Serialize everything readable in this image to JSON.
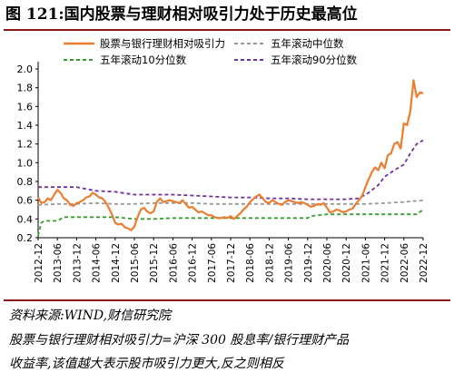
{
  "header": {
    "title": "图 121:国内股票与理财相对吸引力处于历史最高位"
  },
  "notes": {
    "source": "资料来源:WIND,财信研究院",
    "definition_line1": "股票与银行理财相对吸引力=沪深 300 股息率/银行理财产品",
    "definition_line2": "收益率,该值越大表示股市吸引力更大,反之则相反"
  },
  "colors": {
    "title_rule": "#8b1a1a",
    "main_series": "#ed7d31",
    "median_series": "#999999",
    "p10_series": "#33a02c",
    "p90_series": "#7030a0"
  },
  "chart_data": {
    "type": "line",
    "title": "",
    "xlabel": "",
    "ylabel": "",
    "ylim": [
      0.2,
      2.0
    ],
    "yticks": [
      "0.2",
      "0.4",
      "0.6",
      "0.8",
      "1.0",
      "1.2",
      "1.4",
      "1.6",
      "1.8",
      "2.0"
    ],
    "x_start": "2012-12",
    "x_end": "2022-12",
    "xticks": [
      "2012-12",
      "2013-06",
      "2013-12",
      "2014-06",
      "2014-12",
      "2015-06",
      "2015-12",
      "2016-06",
      "2016-12",
      "2017-06",
      "2017-12",
      "2018-06",
      "2018-12",
      "2019-06",
      "2019-12",
      "2020-06",
      "2020-12",
      "2021-06",
      "2021-12",
      "2022-06",
      "2022-12"
    ],
    "grid": false,
    "legend_position": "top",
    "series": [
      {
        "name": "股票与银行理财相对吸引力",
        "color": "#ed7d31",
        "style": "solid",
        "points": [
          [
            "2012-12",
            0.63
          ],
          [
            "2013-01",
            0.57
          ],
          [
            "2013-02",
            0.58
          ],
          [
            "2013-03",
            0.62
          ],
          [
            "2013-04",
            0.6
          ],
          [
            "2013-05",
            0.66
          ],
          [
            "2013-06",
            0.71
          ],
          [
            "2013-07",
            0.68
          ],
          [
            "2013-08",
            0.62
          ],
          [
            "2013-09",
            0.6
          ],
          [
            "2013-10",
            0.55
          ],
          [
            "2013-11",
            0.54
          ],
          [
            "2013-12",
            0.57
          ],
          [
            "2014-01",
            0.58
          ],
          [
            "2014-02",
            0.6
          ],
          [
            "2014-03",
            0.63
          ],
          [
            "2014-04",
            0.64
          ],
          [
            "2014-05",
            0.68
          ],
          [
            "2014-06",
            0.66
          ],
          [
            "2014-07",
            0.63
          ],
          [
            "2014-08",
            0.62
          ],
          [
            "2014-09",
            0.58
          ],
          [
            "2014-10",
            0.52
          ],
          [
            "2014-11",
            0.45
          ],
          [
            "2014-12",
            0.36
          ],
          [
            "2015-01",
            0.34
          ],
          [
            "2015-02",
            0.35
          ],
          [
            "2015-03",
            0.31
          ],
          [
            "2015-04",
            0.3
          ],
          [
            "2015-05",
            0.28
          ],
          [
            "2015-06",
            0.32
          ],
          [
            "2015-07",
            0.42
          ],
          [
            "2015-08",
            0.5
          ],
          [
            "2015-09",
            0.52
          ],
          [
            "2015-10",
            0.48
          ],
          [
            "2015-11",
            0.46
          ],
          [
            "2015-12",
            0.48
          ],
          [
            "2016-01",
            0.58
          ],
          [
            "2016-02",
            0.62
          ],
          [
            "2016-03",
            0.58
          ],
          [
            "2016-04",
            0.59
          ],
          [
            "2016-05",
            0.6
          ],
          [
            "2016-06",
            0.59
          ],
          [
            "2016-07",
            0.58
          ],
          [
            "2016-08",
            0.57
          ],
          [
            "2016-09",
            0.6
          ],
          [
            "2016-10",
            0.56
          ],
          [
            "2016-11",
            0.52
          ],
          [
            "2016-12",
            0.53
          ],
          [
            "2017-01",
            0.5
          ],
          [
            "2017-02",
            0.47
          ],
          [
            "2017-03",
            0.48
          ],
          [
            "2017-04",
            0.46
          ],
          [
            "2017-05",
            0.44
          ],
          [
            "2017-06",
            0.44
          ],
          [
            "2017-07",
            0.42
          ],
          [
            "2017-08",
            0.41
          ],
          [
            "2017-09",
            0.41
          ],
          [
            "2017-10",
            0.42
          ],
          [
            "2017-11",
            0.41
          ],
          [
            "2017-12",
            0.43
          ],
          [
            "2018-01",
            0.4
          ],
          [
            "2018-02",
            0.43
          ],
          [
            "2018-03",
            0.46
          ],
          [
            "2018-04",
            0.5
          ],
          [
            "2018-05",
            0.53
          ],
          [
            "2018-06",
            0.58
          ],
          [
            "2018-07",
            0.61
          ],
          [
            "2018-08",
            0.64
          ],
          [
            "2018-09",
            0.66
          ],
          [
            "2018-10",
            0.62
          ],
          [
            "2018-11",
            0.58
          ],
          [
            "2018-12",
            0.57
          ],
          [
            "2019-01",
            0.6
          ],
          [
            "2019-02",
            0.58
          ],
          [
            "2019-03",
            0.56
          ],
          [
            "2019-04",
            0.55
          ],
          [
            "2019-05",
            0.58
          ],
          [
            "2019-06",
            0.6
          ],
          [
            "2019-07",
            0.59
          ],
          [
            "2019-08",
            0.58
          ],
          [
            "2019-09",
            0.57
          ],
          [
            "2019-10",
            0.58
          ],
          [
            "2019-11",
            0.57
          ],
          [
            "2019-12",
            0.55
          ],
          [
            "2020-01",
            0.53
          ],
          [
            "2020-02",
            0.54
          ],
          [
            "2020-03",
            0.56
          ],
          [
            "2020-04",
            0.55
          ],
          [
            "2020-05",
            0.57
          ],
          [
            "2020-06",
            0.52
          ],
          [
            "2020-07",
            0.47
          ],
          [
            "2020-08",
            0.48
          ],
          [
            "2020-09",
            0.5
          ],
          [
            "2020-10",
            0.49
          ],
          [
            "2020-11",
            0.47
          ],
          [
            "2020-12",
            0.48
          ],
          [
            "2021-01",
            0.5
          ],
          [
            "2021-02",
            0.51
          ],
          [
            "2021-03",
            0.56
          ],
          [
            "2021-04",
            0.6
          ],
          [
            "2021-05",
            0.65
          ],
          [
            "2021-06",
            0.74
          ],
          [
            "2021-07",
            0.82
          ],
          [
            "2021-08",
            0.9
          ],
          [
            "2021-09",
            0.95
          ],
          [
            "2021-10",
            0.92
          ],
          [
            "2021-11",
            1.0
          ],
          [
            "2021-12",
            0.94
          ],
          [
            "2022-01",
            1.08
          ],
          [
            "2022-02",
            1.1
          ],
          [
            "2022-03",
            1.2
          ],
          [
            "2022-04",
            1.22
          ],
          [
            "2022-05",
            1.15
          ],
          [
            "2022-06",
            1.42
          ],
          [
            "2022-07",
            1.4
          ],
          [
            "2022-08",
            1.55
          ],
          [
            "2022-09",
            1.88
          ],
          [
            "2022-10",
            1.7
          ],
          [
            "2022-11",
            1.75
          ],
          [
            "2022-12",
            1.74
          ]
        ]
      },
      {
        "name": "五年滚动中位数",
        "color": "#999999",
        "style": "dashed",
        "points": [
          [
            "2012-12",
            0.55
          ],
          [
            "2013-06",
            0.56
          ],
          [
            "2013-12",
            0.56
          ],
          [
            "2014-06",
            0.57
          ],
          [
            "2014-12",
            0.56
          ],
          [
            "2015-06",
            0.56
          ],
          [
            "2015-12",
            0.57
          ],
          [
            "2016-06",
            0.57
          ],
          [
            "2016-12",
            0.57
          ],
          [
            "2017-06",
            0.56
          ],
          [
            "2017-12",
            0.56
          ],
          [
            "2018-06",
            0.56
          ],
          [
            "2018-12",
            0.56
          ],
          [
            "2019-06",
            0.56
          ],
          [
            "2019-12",
            0.56
          ],
          [
            "2020-06",
            0.56
          ],
          [
            "2020-12",
            0.56
          ],
          [
            "2021-06",
            0.56
          ],
          [
            "2021-12",
            0.57
          ],
          [
            "2022-06",
            0.58
          ],
          [
            "2022-12",
            0.6
          ]
        ]
      },
      {
        "name": "五年滚动10分位数",
        "color": "#33a02c",
        "style": "dashed",
        "points": [
          [
            "2012-12",
            0.22
          ],
          [
            "2013-01",
            0.36
          ],
          [
            "2013-02",
            0.38
          ],
          [
            "2013-06",
            0.38
          ],
          [
            "2013-08",
            0.42
          ],
          [
            "2014-06",
            0.42
          ],
          [
            "2014-12",
            0.42
          ],
          [
            "2015-06",
            0.4
          ],
          [
            "2015-12",
            0.4
          ],
          [
            "2016-06",
            0.41
          ],
          [
            "2016-12",
            0.41
          ],
          [
            "2017-06",
            0.41
          ],
          [
            "2017-12",
            0.41
          ],
          [
            "2018-06",
            0.41
          ],
          [
            "2018-12",
            0.41
          ],
          [
            "2019-06",
            0.41
          ],
          [
            "2019-12",
            0.41
          ],
          [
            "2020-01",
            0.43
          ],
          [
            "2020-06",
            0.45
          ],
          [
            "2020-12",
            0.45
          ],
          [
            "2021-06",
            0.45
          ],
          [
            "2021-12",
            0.45
          ],
          [
            "2022-06",
            0.45
          ],
          [
            "2022-10",
            0.45
          ],
          [
            "2022-12",
            0.5
          ]
        ]
      },
      {
        "name": "五年滚动90分位数",
        "color": "#7030a0",
        "style": "dashed",
        "points": [
          [
            "2012-12",
            0.74
          ],
          [
            "2013-06",
            0.74
          ],
          [
            "2013-12",
            0.74
          ],
          [
            "2014-06",
            0.7
          ],
          [
            "2014-12",
            0.69
          ],
          [
            "2015-06",
            0.66
          ],
          [
            "2015-12",
            0.66
          ],
          [
            "2016-06",
            0.66
          ],
          [
            "2016-12",
            0.65
          ],
          [
            "2017-06",
            0.64
          ],
          [
            "2017-12",
            0.63
          ],
          [
            "2018-06",
            0.63
          ],
          [
            "2018-12",
            0.62
          ],
          [
            "2019-06",
            0.62
          ],
          [
            "2019-12",
            0.61
          ],
          [
            "2020-06",
            0.61
          ],
          [
            "2020-12",
            0.61
          ],
          [
            "2021-04",
            0.62
          ],
          [
            "2021-07",
            0.68
          ],
          [
            "2021-10",
            0.76
          ],
          [
            "2021-12",
            0.85
          ],
          [
            "2022-03",
            0.92
          ],
          [
            "2022-06",
            0.98
          ],
          [
            "2022-08",
            1.1
          ],
          [
            "2022-10",
            1.2
          ],
          [
            "2022-12",
            1.24
          ]
        ]
      }
    ]
  }
}
